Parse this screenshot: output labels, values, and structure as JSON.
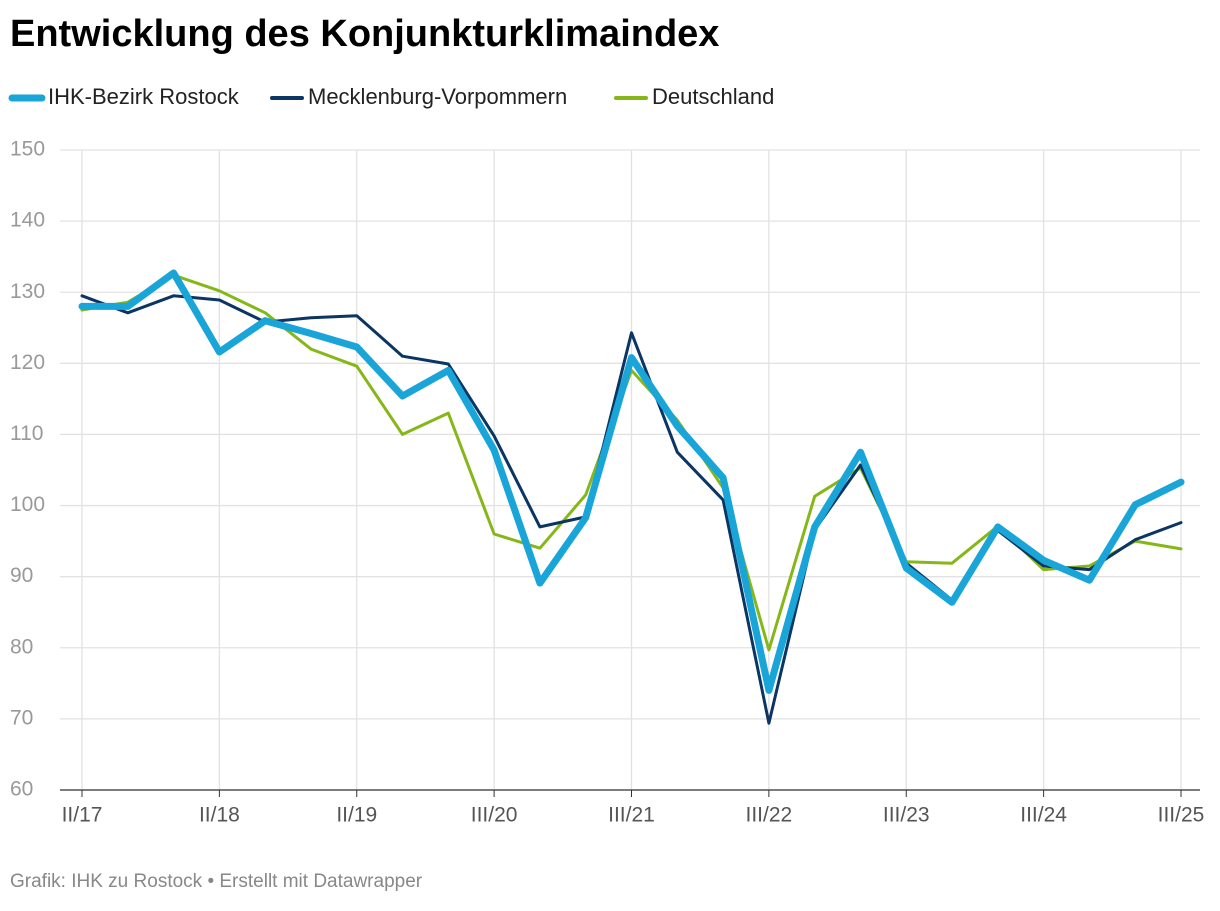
{
  "chart_data": {
    "type": "line",
    "title": "Entwicklung des Konjunkturklimaindex",
    "footer": "Grafik: IHK zu Rostock • Erstellt mit Datawrapper",
    "categories": [
      "II/17",
      null,
      null,
      "II/18",
      null,
      null,
      "II/19",
      null,
      null,
      "III/20",
      null,
      null,
      "III/21",
      null,
      null,
      "III/22",
      null,
      null,
      "III/23",
      null,
      null,
      "III/24",
      null,
      null,
      "III/25"
    ],
    "series": [
      {
        "name": "IHK-Bezirk Rostock",
        "color": "#1aa5d8",
        "values": [
          128,
          128,
          132.7,
          121.6,
          126,
          124.2,
          122.3,
          115.4,
          119,
          107.8,
          89.1,
          98.3,
          120.8,
          111.2,
          103.9,
          74,
          97,
          107.5,
          91.2,
          86.4,
          97,
          92.3,
          89.5,
          100.1,
          103.3
        ]
      },
      {
        "name": "Mecklenburg-Vorpommern",
        "color": "#0b3563",
        "values": [
          129.5,
          127.1,
          129.5,
          128.9,
          125.8,
          126.4,
          126.7,
          121,
          119.9,
          109.8,
          97,
          98.4,
          124.3,
          107.5,
          100.8,
          69.4,
          96.6,
          105.7,
          91.9,
          86.7,
          96.5,
          91.5,
          91,
          95.2,
          97.6
        ]
      },
      {
        "name": "Deutschland",
        "color": "#85b719",
        "values": [
          127.5,
          128.6,
          132.4,
          130.2,
          127.1,
          122,
          119.6,
          110,
          113,
          96,
          94,
          101.5,
          119,
          112,
          102.5,
          79.7,
          101.3,
          105.3,
          92.1,
          91.9,
          97.1,
          91,
          91.5,
          95,
          93.9
        ]
      }
    ],
    "ylim": [
      60,
      150
    ],
    "yticks": [
      60,
      70,
      80,
      90,
      100,
      110,
      120,
      130,
      140,
      150
    ],
    "grid": true
  }
}
